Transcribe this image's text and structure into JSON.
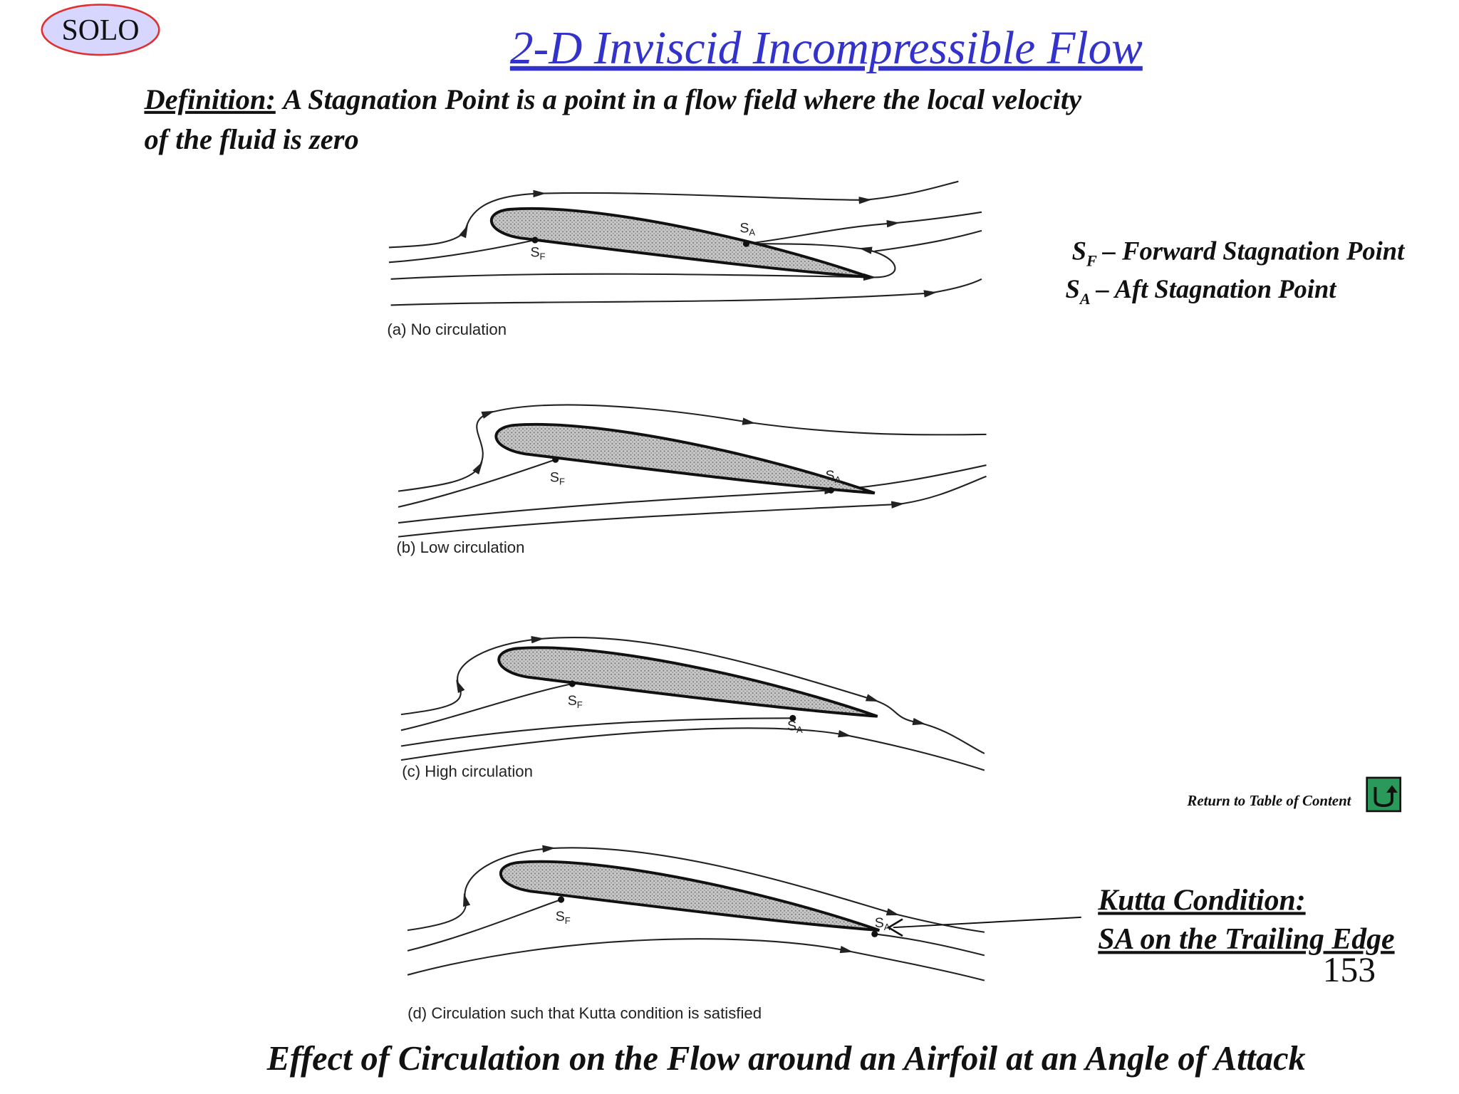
{
  "badge": "SOLO",
  "title": "2-D Inviscid Incompressible Flow",
  "definition": {
    "term": "Definition:",
    "line1": "A Stagnation Point is a point in a flow field where the local velocity",
    "line2": "of the fluid is zero"
  },
  "legend": [
    {
      "symbol": "S",
      "sub": "F",
      "text": "– Forward Stagnation Point"
    },
    {
      "symbol": "S",
      "sub": "A",
      "text": "– Aft Stagnation Point"
    }
  ],
  "panels": [
    {
      "caption": "(a) No circulation",
      "sf": {
        "symbol": "S",
        "sub": "F"
      },
      "sa": {
        "symbol": "S",
        "sub": "A"
      }
    },
    {
      "caption": "(b) Low circulation",
      "sf": {
        "symbol": "S",
        "sub": "F"
      },
      "sa": {
        "symbol": "S",
        "sub": "A"
      }
    },
    {
      "caption": "(c) High circulation",
      "sf": {
        "symbol": "S",
        "sub": "F"
      },
      "sa": {
        "symbol": "S",
        "sub": "A"
      }
    },
    {
      "caption": "(d) Circulation such that Kutta condition is satisfied",
      "sf": {
        "symbol": "S",
        "sub": "F"
      },
      "sa": {
        "symbol": "S",
        "sub": "A"
      }
    }
  ],
  "kutta": {
    "line1": "Kutta Condition:",
    "line2": "SA on the Trailing Edge"
  },
  "return_link": "Return to Table of Content",
  "page_number": "153",
  "caption": "Effect of Circulation on the Flow around an Airfoil at an Angle of Attack"
}
